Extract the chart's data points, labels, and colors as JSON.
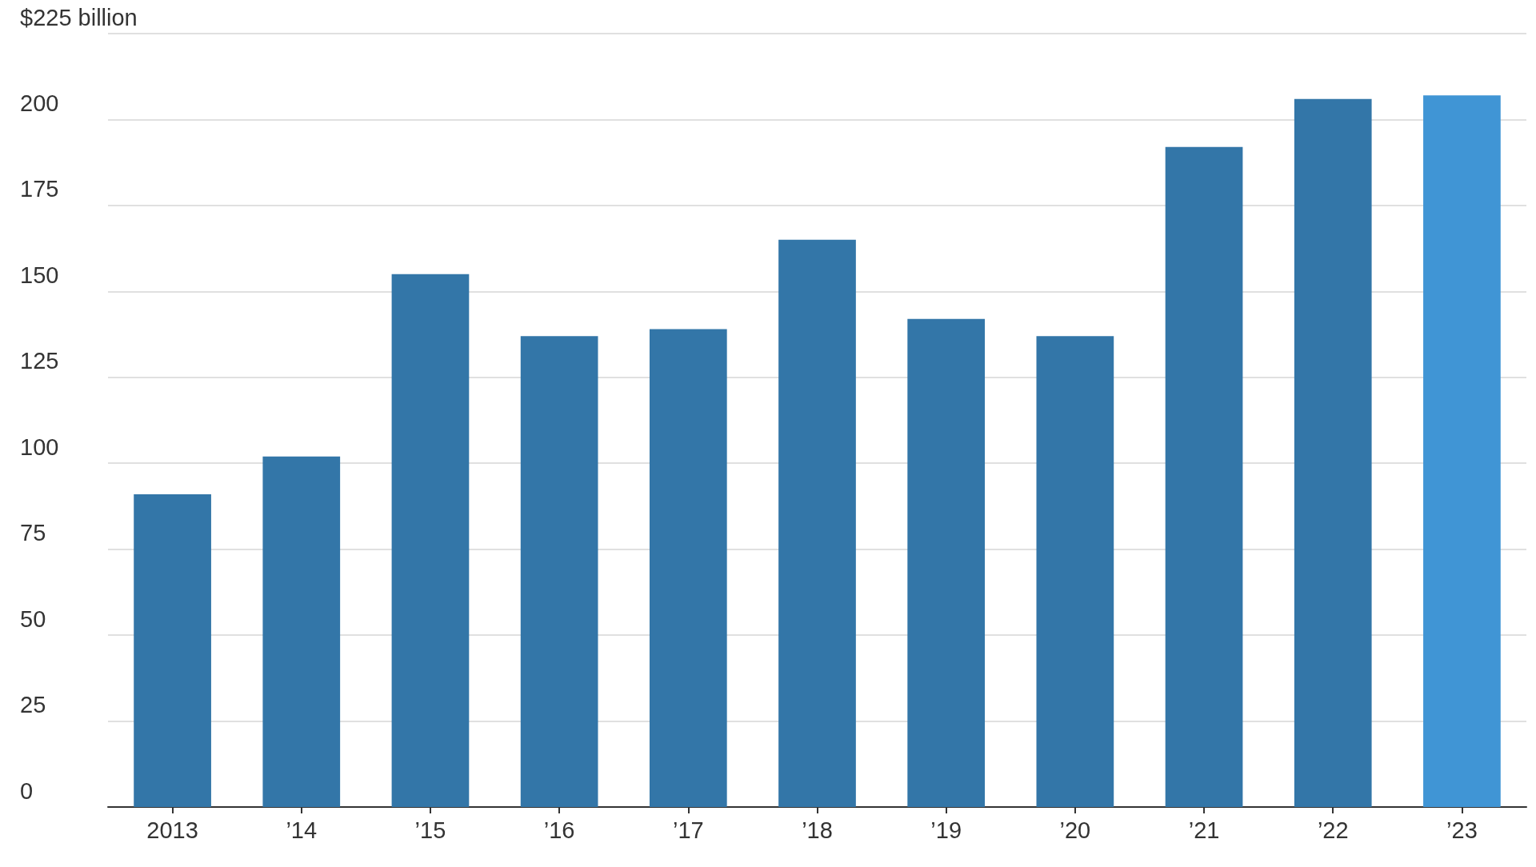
{
  "chart_data": {
    "type": "bar",
    "categories": [
      "2013",
      "’14",
      "’15",
      "’16",
      "’17",
      "’18",
      "’19",
      "’20",
      "’21",
      "’22",
      "’23"
    ],
    "values": [
      91,
      102,
      155,
      137,
      139,
      165,
      142,
      137,
      192,
      206,
      207
    ],
    "colors": [
      "#3376a8",
      "#3376a8",
      "#3376a8",
      "#3376a8",
      "#3376a8",
      "#3376a8",
      "#3376a8",
      "#3376a8",
      "#3376a8",
      "#3376a8",
      "#4095d5"
    ],
    "ylim": [
      0,
      225
    ],
    "yticks": [
      0,
      25,
      50,
      75,
      100,
      125,
      150,
      175,
      200,
      {
        "value": 225,
        "label": "$225 billion"
      }
    ],
    "grid": "y"
  }
}
